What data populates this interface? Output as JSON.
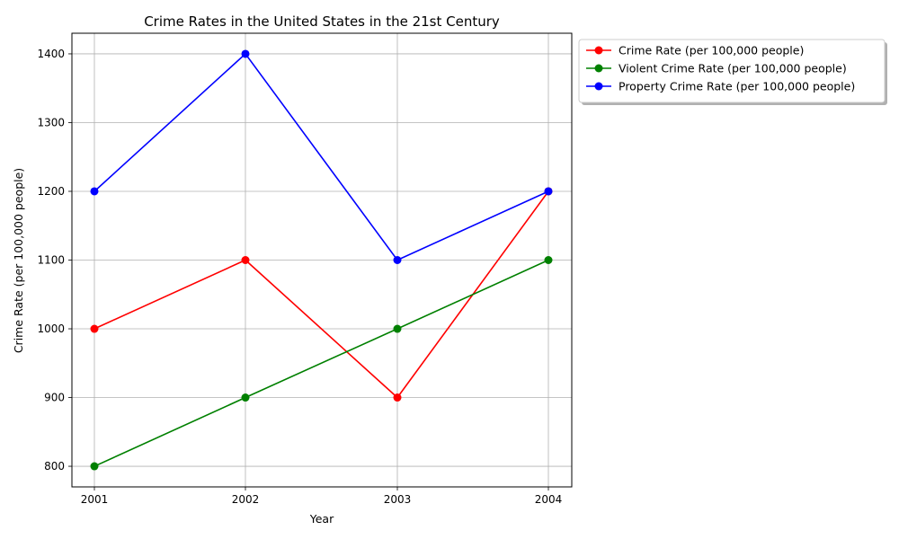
{
  "chart_data": {
    "type": "line",
    "title": "Crime Rates in the United States in the 21st Century",
    "xlabel": "Year",
    "ylabel": "Crime Rate (per 100,000 people)",
    "x": [
      "2001",
      "2002",
      "2003",
      "2004"
    ],
    "y_ticks": [
      800,
      900,
      1000,
      1100,
      1200,
      1300,
      1400
    ],
    "ylim": [
      770,
      1430
    ],
    "grid": true,
    "legend_position": "outside-top-right",
    "series": [
      {
        "name": "Crime Rate (per 100,000 people)",
        "color": "#ff0000",
        "values": [
          1000,
          1100,
          900,
          1200
        ]
      },
      {
        "name": "Violent Crime Rate (per 100,000 people)",
        "color": "#008000",
        "values": [
          800,
          900,
          1000,
          1100
        ]
      },
      {
        "name": "Property Crime Rate (per 100,000 people)",
        "color": "#0000ff",
        "values": [
          1200,
          1400,
          1100,
          1200
        ]
      }
    ]
  }
}
